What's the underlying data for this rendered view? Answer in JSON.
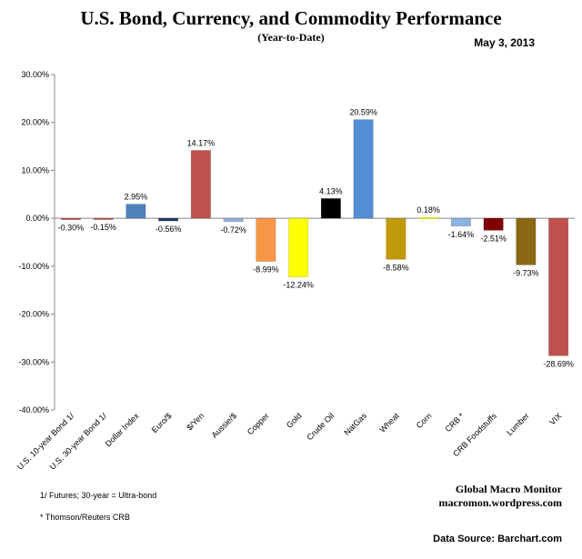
{
  "header": {
    "title": "U.S. Bond, Currency, and Commodity Performance",
    "subtitle": "(Year-to-Date)",
    "date": "May 3, 2013"
  },
  "footer": {
    "footnote1": "1/   Futures; 30-year = Ultra-bond",
    "footnote2": "* Thomson/Reuters CRB",
    "brand_name": "Global Macro Monitor",
    "brand_url": "macromon.wordpress.com",
    "source": "Data Source:  Barchart.com"
  },
  "chart_data": {
    "type": "bar",
    "title": "U.S. Bond, Currency, and Commodity Performance",
    "subtitle": "(Year-to-Date)",
    "xlabel": "",
    "ylabel": "",
    "ylim": [
      -40,
      30
    ],
    "y_ticks": [
      30,
      20,
      10,
      0,
      -10,
      -20,
      -30,
      -40
    ],
    "y_tick_labels": [
      "30.00%",
      "20.00%",
      "10.00%",
      "0.00%",
      "-10.00%",
      "-20.00%",
      "-30.00%",
      "-40.00%"
    ],
    "grid": false,
    "categories": [
      "U.S. 10-year Bond 1/",
      "U.S. 30-year Bond 1/",
      "Dollar Index",
      "Euro/$",
      "$/Yen",
      "Aussie/$",
      "Copper",
      "Gold",
      "Crude Oil",
      "NatGas",
      "Wheat",
      "Corn",
      "CRB *",
      "CRB Foodstuffs",
      "Lumber",
      "VIX"
    ],
    "values": [
      -0.3,
      -0.15,
      2.95,
      -0.56,
      14.17,
      -0.72,
      -8.99,
      -12.24,
      4.13,
      20.59,
      -8.58,
      0.18,
      -1.64,
      -2.51,
      -9.73,
      -28.69
    ],
    "data_labels": [
      "-0.30%",
      "-0.15%",
      "2.95%",
      "-0.56%",
      "14.17%",
      "-0.72%",
      "-8.99%",
      "-12.24%",
      "4.13%",
      "20.59%",
      "-8.58%",
      "0.18%",
      "-1.64%",
      "-2.51%",
      "-9.73%",
      "-28.69%"
    ],
    "colors": [
      "#c0504d",
      "#c0504d",
      "#4f81bd",
      "#1f3864",
      "#c0504d",
      "#95b3d7",
      "#f79646",
      "#ffff00",
      "#000000",
      "#558ed5",
      "#c09a0a",
      "#ffff00",
      "#8db3e2",
      "#7f0000",
      "#8b6914",
      "#c0504d"
    ]
  }
}
